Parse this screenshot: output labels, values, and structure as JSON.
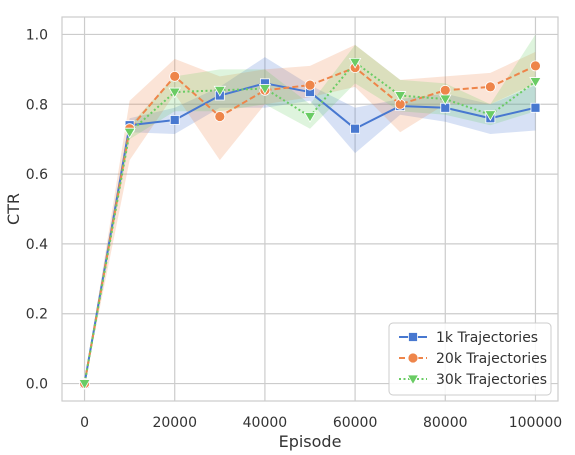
{
  "chart_data": {
    "type": "line",
    "xlabel": "Episode",
    "ylabel": "CTR",
    "xlim": [
      -5000,
      105000
    ],
    "ylim": [
      -0.05,
      1.05
    ],
    "xticks": [
      0,
      20000,
      40000,
      60000,
      80000,
      100000
    ],
    "xtick_labels": [
      "0",
      "20000",
      "40000",
      "60000",
      "80000",
      "100000"
    ],
    "yticks": [
      0.0,
      0.2,
      0.4,
      0.6,
      0.8,
      1.0
    ],
    "ytick_labels": [
      "0.0",
      "0.2",
      "0.4",
      "0.6",
      "0.8",
      "1.0"
    ],
    "grid": true,
    "legend_position": "bottom-right",
    "x": [
      0,
      10000,
      20000,
      30000,
      40000,
      50000,
      60000,
      70000,
      80000,
      90000,
      100000
    ],
    "series": [
      {
        "name": "1k Trajectories",
        "color": "#4878d0",
        "marker": "square",
        "linestyle": "solid",
        "values": [
          0.0,
          0.74,
          0.755,
          0.825,
          0.86,
          0.835,
          0.73,
          0.795,
          0.79,
          0.76,
          0.79
        ],
        "lower": [
          0.0,
          0.72,
          0.715,
          0.79,
          0.79,
          0.81,
          0.66,
          0.77,
          0.75,
          0.715,
          0.725
        ],
        "upper": [
          0.0,
          0.76,
          0.79,
          0.85,
          0.935,
          0.855,
          0.79,
          0.815,
          0.83,
          0.8,
          0.855
        ]
      },
      {
        "name": "20k Trajectories",
        "color": "#ee854a",
        "marker": "circle",
        "linestyle": "dashed",
        "values": [
          0.0,
          0.73,
          0.88,
          0.765,
          0.84,
          0.855,
          0.905,
          0.8,
          0.84,
          0.85,
          0.91
        ],
        "lower": [
          0.0,
          0.64,
          0.83,
          0.64,
          0.8,
          0.82,
          0.85,
          0.72,
          0.8,
          0.8,
          0.86
        ],
        "upper": [
          0.0,
          0.81,
          0.93,
          0.88,
          0.9,
          0.91,
          0.97,
          0.87,
          0.88,
          0.89,
          0.95
        ]
      },
      {
        "name": "30k Trajectories",
        "color": "#6acc64",
        "marker": "triangle-down",
        "linestyle": "dotted",
        "values": [
          0.0,
          0.72,
          0.835,
          0.84,
          0.845,
          0.765,
          0.92,
          0.825,
          0.815,
          0.77,
          0.865
        ],
        "lower": [
          0.0,
          0.7,
          0.78,
          0.78,
          0.8,
          0.73,
          0.86,
          0.78,
          0.77,
          0.74,
          0.78
        ],
        "upper": [
          0.0,
          0.74,
          0.88,
          0.9,
          0.9,
          0.8,
          0.97,
          0.87,
          0.86,
          0.8,
          1.0
        ]
      }
    ]
  }
}
